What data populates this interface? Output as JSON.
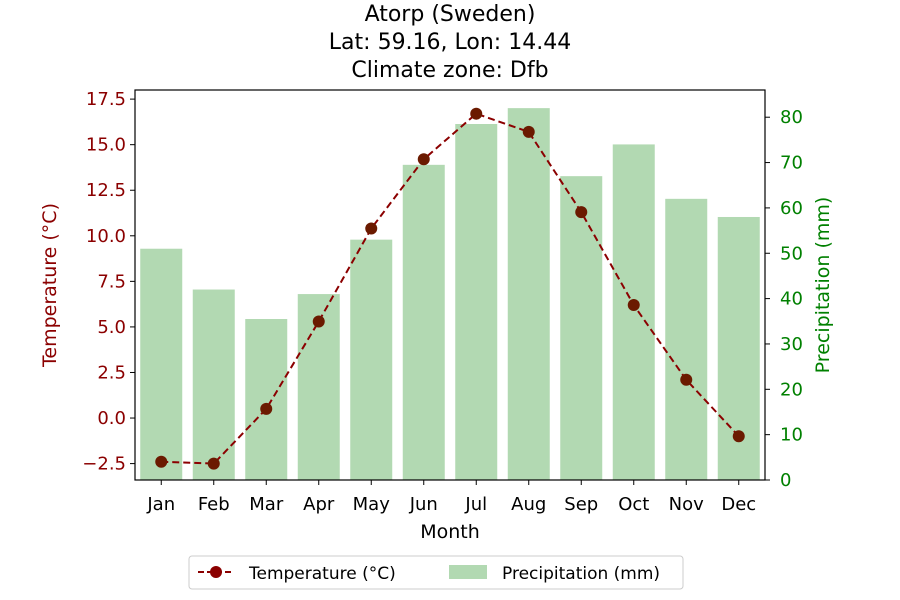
{
  "chart_data": {
    "type": "bar+line",
    "title_lines": [
      "Atorp (Sweden)",
      "Lat: 59.16, Lon: 14.44",
      "Climate zone: Dfb"
    ],
    "xlabel": "Month",
    "ylabel_left": "Temperature (°C)",
    "ylabel_right": "Precipitation (mm)",
    "categories": [
      "Jan",
      "Feb",
      "Mar",
      "Apr",
      "May",
      "Jun",
      "Jul",
      "Aug",
      "Sep",
      "Oct",
      "Nov",
      "Dec"
    ],
    "series": [
      {
        "name": "Temperature (°C)",
        "type": "line",
        "axis": "left",
        "color": "#8b0000",
        "values": [
          -2.4,
          -2.5,
          0.5,
          5.3,
          10.4,
          14.2,
          16.7,
          15.7,
          11.3,
          6.2,
          2.1,
          -1.0
        ]
      },
      {
        "name": "Precipitation (mm)",
        "type": "bar",
        "axis": "right",
        "color": "#b2d9b2",
        "values": [
          51,
          42,
          35.5,
          41,
          53,
          69.5,
          78.5,
          82,
          67,
          74,
          62,
          58
        ]
      }
    ],
    "ylim_left": [
      -3.4,
      18.0
    ],
    "ylim_right": [
      0,
      86.0
    ],
    "yticks_left": [
      "−2.5",
      "0.0",
      "2.5",
      "5.0",
      "7.5",
      "10.0",
      "12.5",
      "15.0",
      "17.5"
    ],
    "yticks_left_values": [
      -2.5,
      0,
      2.5,
      5,
      7.5,
      10,
      12.5,
      15,
      17.5
    ],
    "yticks_right": [
      "0",
      "10",
      "20",
      "30",
      "40",
      "50",
      "60",
      "70",
      "80"
    ],
    "yticks_right_values": [
      0,
      10,
      20,
      30,
      40,
      50,
      60,
      70,
      80
    ],
    "left_axis_color": "#8b0000",
    "right_axis_color": "#008000",
    "legend_placement": "bottom-center",
    "grid": false
  }
}
